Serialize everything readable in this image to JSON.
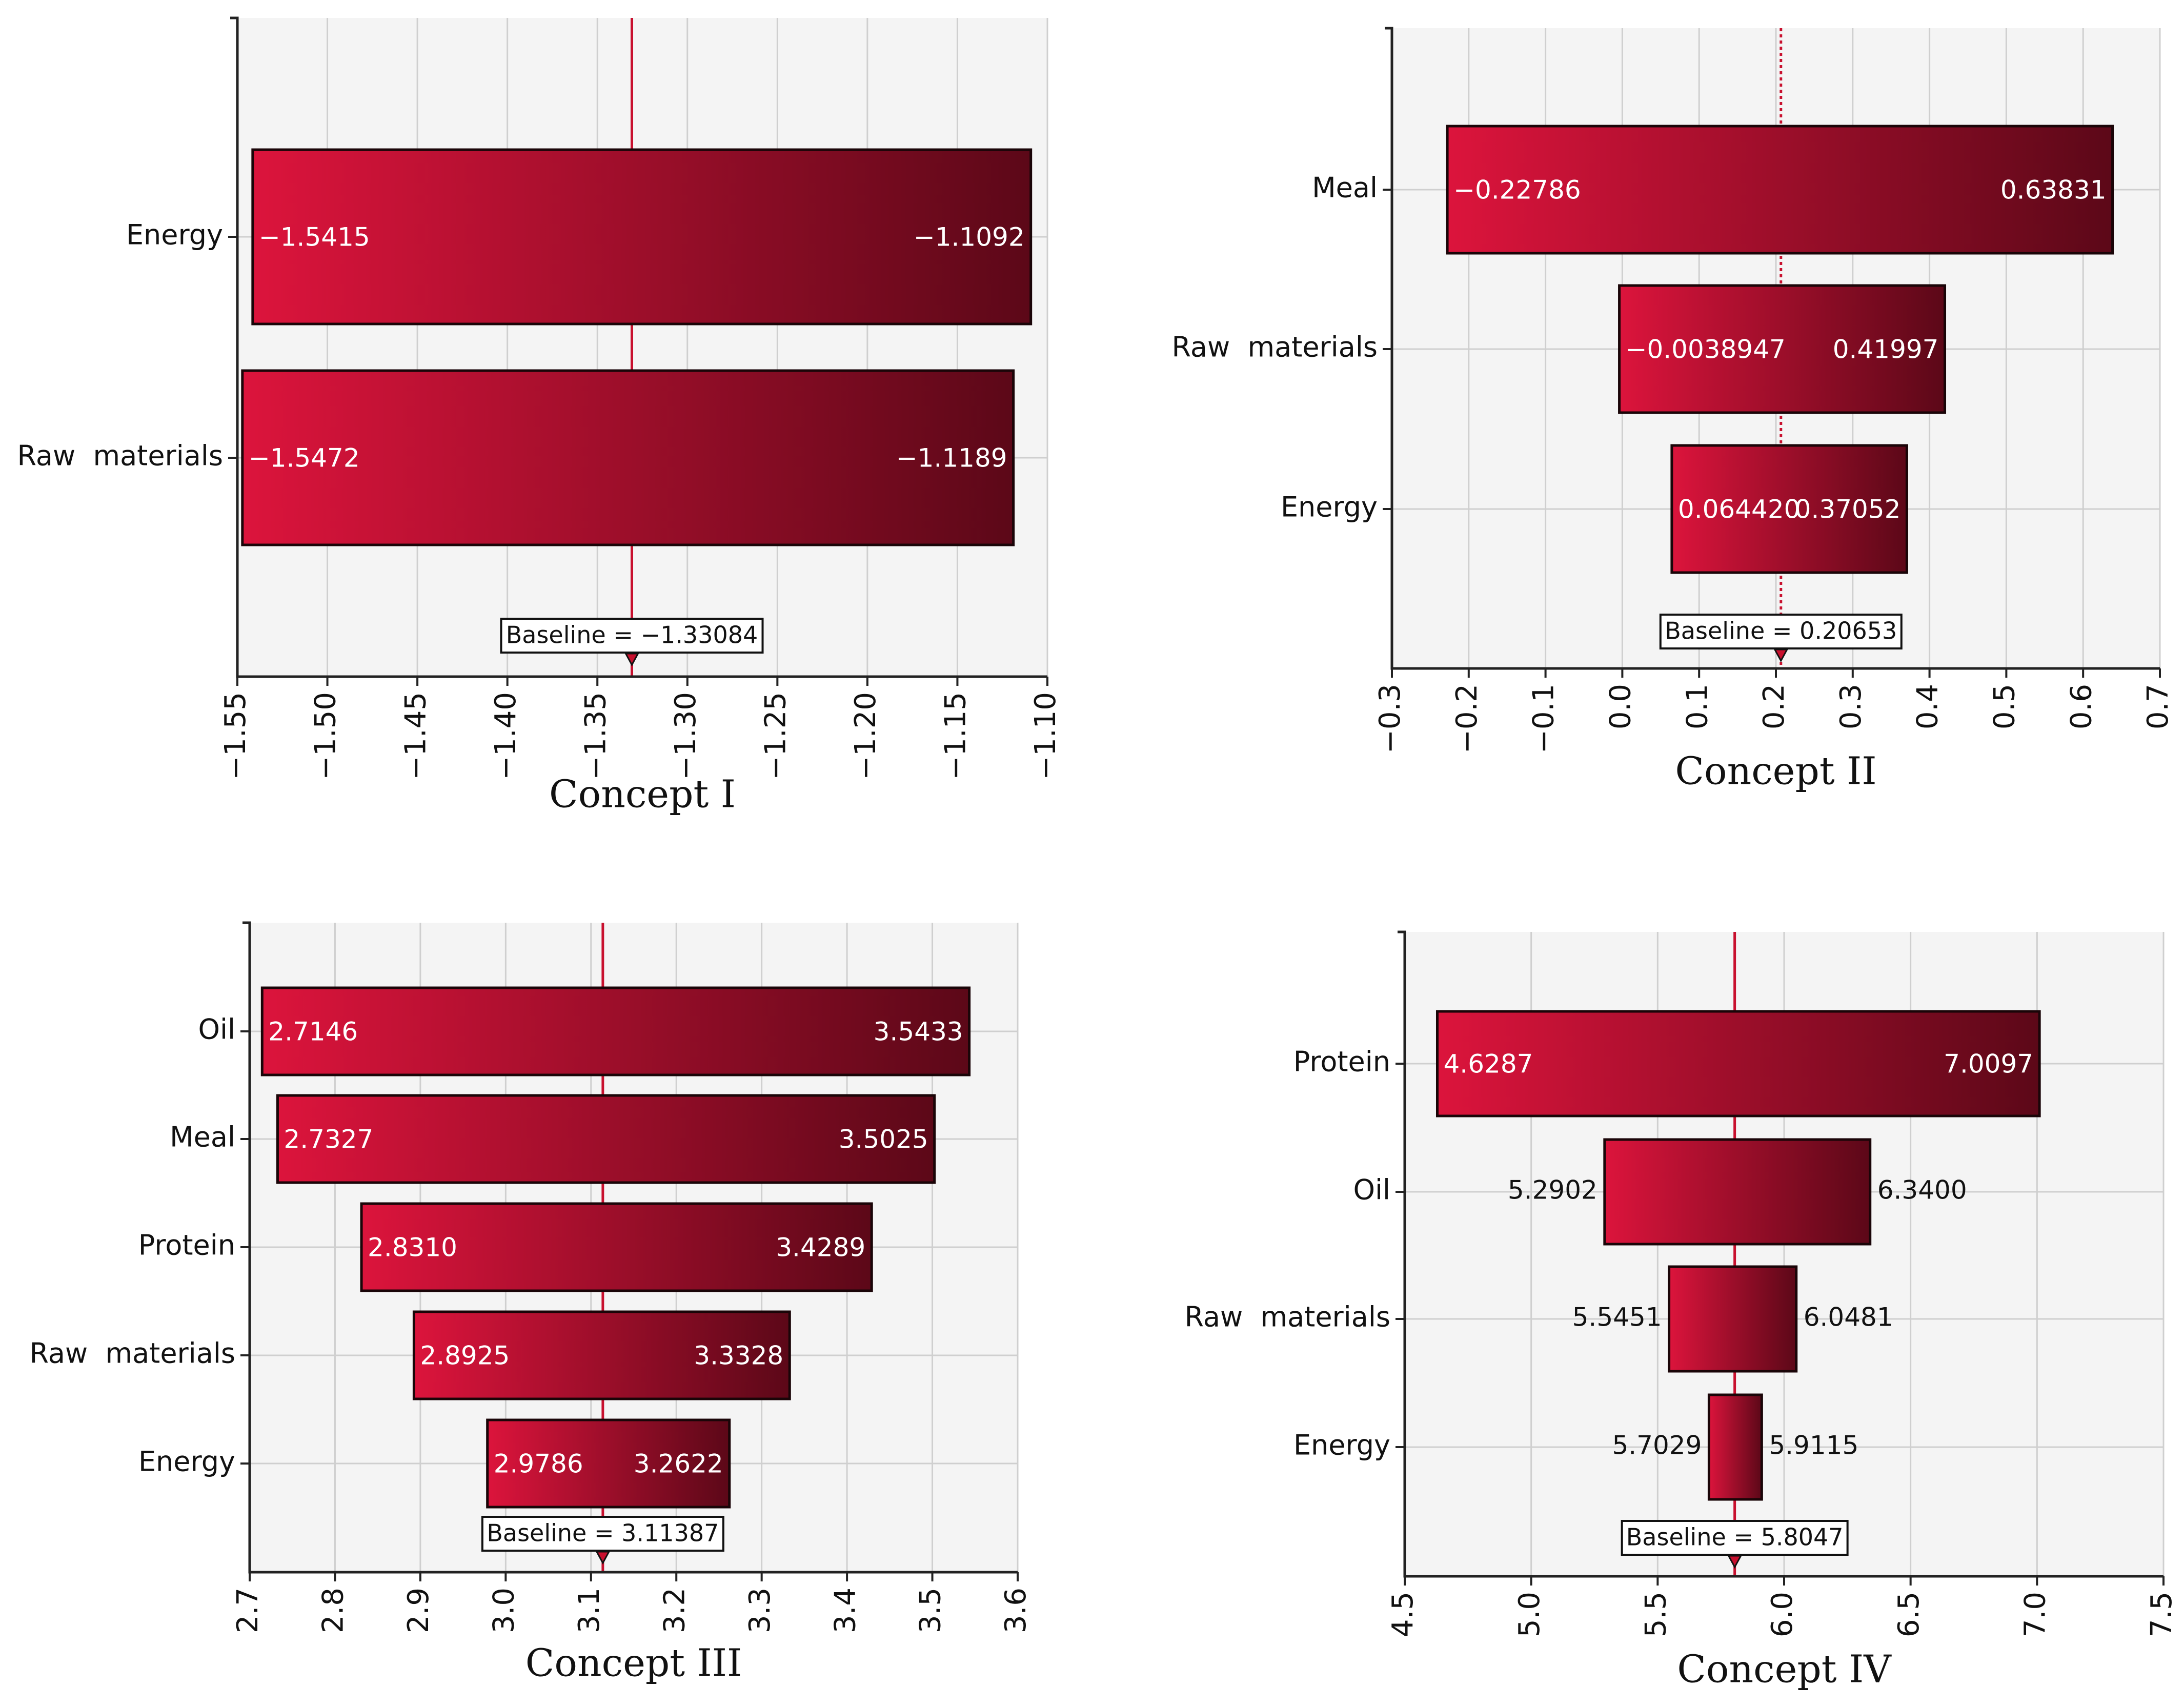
{
  "colors": {
    "bar_light": "#dc143c",
    "bar_dark": "#5c0818",
    "baseline": "#c8102e"
  },
  "chart_data": [
    {
      "type": "bar",
      "subtype": "tornado",
      "title": "",
      "xlabel": "Concept I",
      "ylabel": "",
      "xlim": [
        -1.55,
        -1.1
      ],
      "ticks": [
        -1.55,
        -1.5,
        -1.45,
        -1.4,
        -1.35,
        -1.3,
        -1.25,
        -1.2,
        -1.15,
        -1.1
      ],
      "tick_labels": [
        "−1.55",
        "−1.50",
        "−1.45",
        "−1.40",
        "−1.35",
        "−1.30",
        "−1.25",
        "−1.20",
        "−1.15",
        "−1.10"
      ],
      "baseline": -1.33084,
      "baseline_label": "Baseline = −1.33084",
      "grid": true,
      "categories": [
        "Energy",
        "Raw  materials"
      ],
      "low": [
        -1.5415,
        -1.5472
      ],
      "high": [
        -1.1092,
        -1.1189
      ],
      "low_labels": [
        "−1.5415",
        "−1.5472"
      ],
      "high_labels": [
        "−1.1092",
        "−1.1189"
      ]
    },
    {
      "type": "bar",
      "subtype": "tornado",
      "title": "",
      "xlabel": "Concept II",
      "ylabel": "",
      "xlim": [
        -0.3,
        0.7
      ],
      "ticks": [
        -0.3,
        -0.2,
        -0.1,
        0.0,
        0.1,
        0.2,
        0.3,
        0.4,
        0.5,
        0.6,
        0.7
      ],
      "tick_labels": [
        "−0.3",
        "−0.2",
        "−0.1",
        "0.0",
        "0.1",
        "0.2",
        "0.3",
        "0.4",
        "0.5",
        "0.6",
        "0.7"
      ],
      "baseline": 0.20653,
      "baseline_label": "Baseline = 0.20653",
      "grid": true,
      "categories": [
        "Meal",
        "Raw  materials",
        "Energy"
      ],
      "low": [
        -0.22786,
        -0.0038947,
        0.06442
      ],
      "high": [
        0.63831,
        0.41997,
        0.37052
      ],
      "low_labels": [
        "−0.22786",
        "−0.0038947",
        "0.064420"
      ],
      "high_labels": [
        "0.63831",
        "0.41997",
        "0.37052"
      ]
    },
    {
      "type": "bar",
      "subtype": "tornado",
      "title": "",
      "xlabel": "Concept III",
      "ylabel": "",
      "xlim": [
        2.7,
        3.6
      ],
      "ticks": [
        2.7,
        2.8,
        2.9,
        3.0,
        3.1,
        3.2,
        3.3,
        3.4,
        3.5,
        3.6
      ],
      "tick_labels": [
        "2.7",
        "2.8",
        "2.9",
        "3.0",
        "3.1",
        "3.2",
        "3.3",
        "3.4",
        "3.5",
        "3.6"
      ],
      "baseline": 3.11387,
      "baseline_label": "Baseline = 3.11387",
      "grid": true,
      "categories": [
        "Oil",
        "Meal",
        "Protein",
        "Raw  materials",
        "Energy"
      ],
      "low": [
        2.7146,
        2.7327,
        2.831,
        2.8925,
        2.9786
      ],
      "high": [
        3.5433,
        3.5025,
        3.4289,
        3.3328,
        3.2622
      ],
      "low_labels": [
        "2.7146",
        "2.7327",
        "2.8310",
        "2.8925",
        "2.9786"
      ],
      "high_labels": [
        "3.5433",
        "3.5025",
        "3.4289",
        "3.3328",
        "3.2622"
      ]
    },
    {
      "type": "bar",
      "subtype": "tornado",
      "title": "",
      "xlabel": "Concept IV",
      "ylabel": "",
      "xlim": [
        4.5,
        7.5
      ],
      "ticks": [
        4.5,
        5.0,
        5.5,
        6.0,
        6.5,
        7.0,
        7.5
      ],
      "tick_labels": [
        "4.5",
        "5.0",
        "5.5",
        "6.0",
        "6.5",
        "7.0",
        "7.5"
      ],
      "baseline": 5.8047,
      "baseline_label": "Baseline = 5.8047",
      "grid": true,
      "categories": [
        "Protein",
        "Oil",
        "Raw  materials",
        "Energy"
      ],
      "low": [
        4.6287,
        5.2902,
        5.5451,
        5.7029
      ],
      "high": [
        7.0097,
        6.34,
        6.0481,
        5.9115
      ],
      "low_labels": [
        "4.6287",
        "5.2902",
        "5.5451",
        "5.7029"
      ],
      "high_labels": [
        "7.0097",
        "6.3400",
        "6.0481",
        "5.9115"
      ]
    }
  ]
}
